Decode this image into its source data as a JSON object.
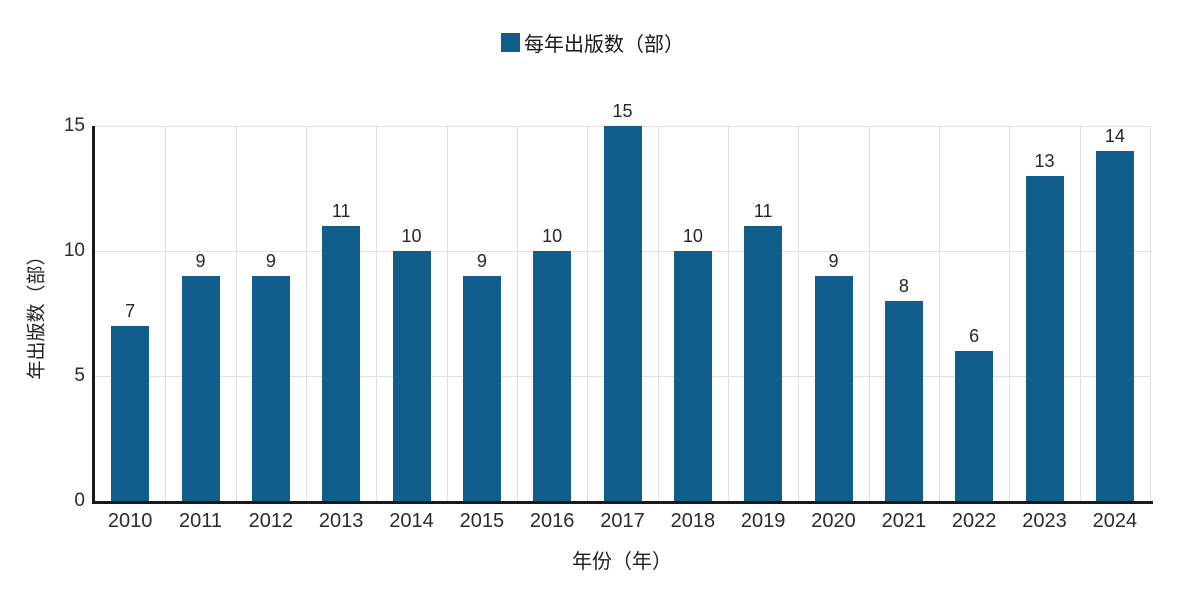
{
  "chart_data": {
    "type": "bar",
    "legend": "每年出版数（部）",
    "xlabel": "年份（年）",
    "ylabel": "年出版数（部）",
    "categories": [
      "2010",
      "2011",
      "2012",
      "2013",
      "2014",
      "2015",
      "2016",
      "2017",
      "2018",
      "2019",
      "2020",
      "2021",
      "2022",
      "2023",
      "2024"
    ],
    "values": [
      7,
      9,
      9,
      11,
      10,
      9,
      10,
      15,
      10,
      11,
      9,
      8,
      6,
      13,
      14
    ],
    "ylim": [
      0,
      15
    ],
    "yticks": [
      0,
      5,
      10,
      15
    ],
    "grid": true,
    "legend_position": "top"
  },
  "colors": {
    "bar": "#115e8d",
    "grid": "#e0e0e0",
    "axis": "#1a1a1a"
  }
}
